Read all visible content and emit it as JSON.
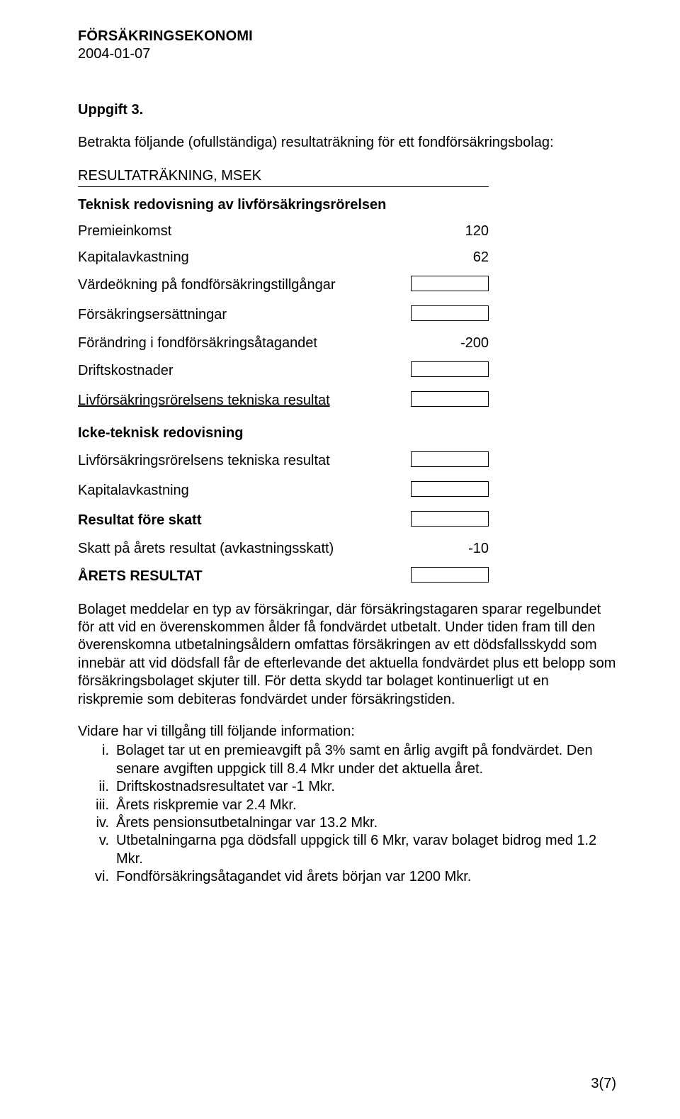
{
  "header": {
    "title": "FÖRSÄKRINGSEKONOMI",
    "date": "2004-01-07"
  },
  "task_heading": "Uppgift 3.",
  "intro": "Betrakta följande (ofullständiga) resultaträkning för ett fondförsäkringsbolag:",
  "section_header": "RESULTATRÄKNING, MSEK",
  "subhead1": "Teknisk redovisning av livförsäkringsrörelsen",
  "rows1": [
    {
      "label": "Premieinkomst",
      "value": "120",
      "box": false,
      "underline": false,
      "bold": false
    },
    {
      "label": "Kapitalavkastning",
      "value": "62",
      "box": false,
      "underline": false,
      "bold": false
    },
    {
      "label": "Värdeökning på fondförsäkringstillgångar",
      "value": "",
      "box": true,
      "underline": false,
      "bold": false
    },
    {
      "label": "Försäkringsersättningar",
      "value": "",
      "box": true,
      "underline": false,
      "bold": false
    },
    {
      "label": "Förändring i fondförsäkringsåtagandet",
      "value": "-200",
      "box": false,
      "underline": false,
      "bold": false
    },
    {
      "label": "Driftskostnader",
      "value": "",
      "box": true,
      "underline": false,
      "bold": false
    },
    {
      "label": "Livförsäkringsrörelsens tekniska resultat",
      "value": "",
      "box": true,
      "underline": true,
      "bold": false
    }
  ],
  "subhead2": "Icke-teknisk redovisning",
  "rows2": [
    {
      "label": "Livförsäkringsrörelsens tekniska resultat",
      "value": "",
      "box": true,
      "underline": false,
      "bold": false
    },
    {
      "label": "Kapitalavkastning",
      "value": "",
      "box": true,
      "underline": false,
      "bold": false
    },
    {
      "label": "Resultat före skatt",
      "value": "",
      "box": true,
      "underline": false,
      "bold": true
    },
    {
      "label": "Skatt på årets resultat (avkastningsskatt)",
      "value": "-10",
      "box": false,
      "underline": false,
      "bold": false
    },
    {
      "label": "ÅRETS RESULTAT",
      "value": "",
      "box": true,
      "underline": false,
      "bold": true
    }
  ],
  "para": "Bolaget meddelar en typ av försäkringar, där försäkringstagaren sparar regelbundet för att vid en överenskommen ålder få fondvärdet utbetalt. Under tiden fram till den överenskomna utbetalningsåldern omfattas försäkringen av ett dödsfallsskydd som innebär att vid dödsfall får de efterlevande det aktuella fondvärdet plus ett belopp som försäkringsbolaget skjuter till. För detta skydd tar bolaget kontinuerligt ut en riskpremie som debiteras fondvärdet under försäkringstiden.",
  "info_line": "Vidare har vi tillgång till följande information:",
  "list": [
    {
      "m": "i.",
      "t": "Bolaget tar ut en premieavgift på 3% samt en årlig avgift på fondvärdet. Den senare avgiften uppgick till 8.4 Mkr under det aktuella året."
    },
    {
      "m": "ii.",
      "t": "Driftskostnadsresultatet var -1 Mkr."
    },
    {
      "m": "iii.",
      "t": "Årets riskpremie var 2.4 Mkr."
    },
    {
      "m": "iv.",
      "t": "Årets pensionsutbetalningar var 13.2 Mkr."
    },
    {
      "m": "v.",
      "t": "Utbetalningarna pga dödsfall uppgick till 6 Mkr, varav bolaget bidrog med 1.2 Mkr."
    },
    {
      "m": "vi.",
      "t": "Fondförsäkringsåtagandet vid årets början var 1200 Mkr."
    }
  ],
  "page_num": "3(7)"
}
